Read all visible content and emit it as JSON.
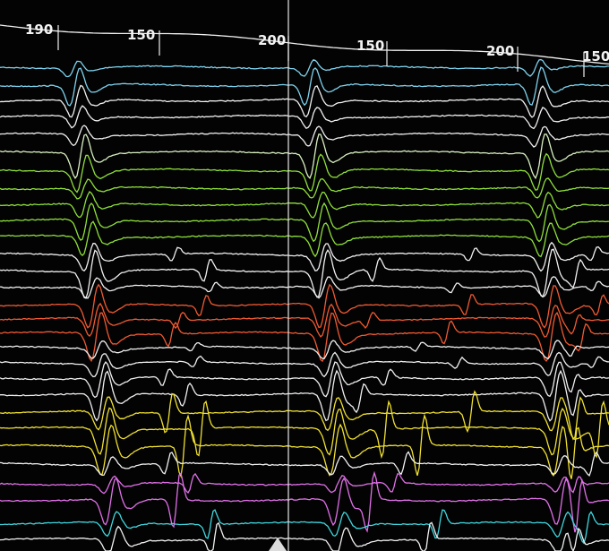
{
  "interval_labels": [
    190,
    150,
    200,
    150,
    200,
    150
  ]
}
